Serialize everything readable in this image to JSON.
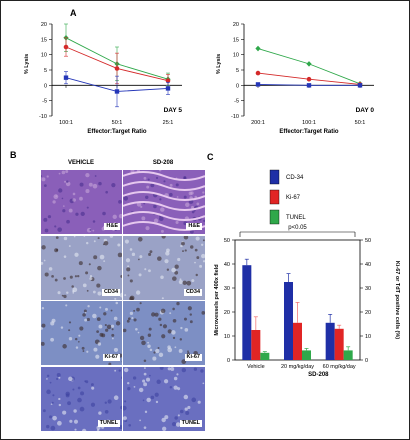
{
  "panels": {
    "A": {
      "label": "A"
    },
    "B": {
      "label": "B",
      "col_headers": [
        "VEHICLE",
        "SD-208"
      ],
      "rows": [
        {
          "label": "H&E",
          "color": "#8a5fb9"
        },
        {
          "label": "CD34",
          "color": "#9aa2c6"
        },
        {
          "label": "Ki-67",
          "color": "#7d8fc4"
        },
        {
          "label": "TUNEL",
          "color": "#6a6fc0"
        }
      ]
    },
    "C": {
      "label": "C"
    }
  },
  "chart_data": [
    {
      "id": "A-day5",
      "type": "line",
      "xlabel": "Effector:Target Ratio",
      "ylabel": "% Lysis",
      "annotation": "DAY 5",
      "categories": [
        "100:1",
        "50:1",
        "25:1"
      ],
      "ylim": [
        -10,
        20
      ],
      "yticks": [
        -10,
        -5,
        0,
        5,
        10,
        15,
        20
      ],
      "series": [
        {
          "color": "#2fa84a",
          "marker": "diamond",
          "values": [
            15.5,
            7.0,
            2.0
          ],
          "err": [
            4.5,
            5.5,
            2.0
          ]
        },
        {
          "color": "#d42a2a",
          "marker": "circle",
          "values": [
            12.5,
            5.5,
            1.5
          ],
          "err": [
            3.0,
            5.0,
            2.0
          ]
        },
        {
          "color": "#2436b8",
          "marker": "square",
          "values": [
            2.5,
            -2.0,
            -1.0
          ],
          "err": [
            2.0,
            5.0,
            2.0
          ]
        }
      ]
    },
    {
      "id": "A-day0",
      "type": "line",
      "xlabel": "Effector:Target Ratio",
      "ylabel": "% Lysis",
      "annotation": "DAY 0",
      "categories": [
        "200:1",
        "100:1",
        "50:1"
      ],
      "ylim": [
        -10,
        20
      ],
      "yticks": [
        -10,
        -5,
        0,
        5,
        10,
        15,
        20
      ],
      "series": [
        {
          "color": "#2fa84a",
          "marker": "diamond",
          "values": [
            12.0,
            7.0,
            0.5
          ],
          "err": [
            0,
            0,
            0
          ]
        },
        {
          "color": "#d42a2a",
          "marker": "circle",
          "values": [
            4.0,
            2.0,
            0.3
          ],
          "err": [
            0,
            0,
            0
          ]
        },
        {
          "color": "#2436b8",
          "marker": "square",
          "values": [
            0.3,
            0.0,
            0.0
          ],
          "err": [
            0,
            0,
            0
          ]
        }
      ]
    },
    {
      "id": "C",
      "type": "bar",
      "ylabel": "Microvessels per 400x field",
      "y2label": "Ki-67 or TdT positive cells (%)",
      "xlabel": "SD-208",
      "categories": [
        "Vehicle",
        "20 mg/kg/day",
        "60 mg/kg/day"
      ],
      "ylim": [
        0,
        50
      ],
      "yticks": [
        0,
        10,
        20,
        30,
        40,
        50
      ],
      "annotation": "p<0.05",
      "series": [
        {
          "name": "CD-34",
          "color": "#1f2fa6",
          "values": [
            39.5,
            32.5,
            15.5
          ],
          "err": [
            2.5,
            3.5,
            3.5
          ]
        },
        {
          "name": "Ki-67",
          "color": "#e12525",
          "values": [
            12.5,
            15.5,
            13.0
          ],
          "err": [
            5.5,
            8.5,
            1.5
          ]
        },
        {
          "name": "TUNEL",
          "color": "#2fa84a",
          "values": [
            3.0,
            4.0,
            4.0
          ],
          "err": [
            0.5,
            0.8,
            1.5
          ]
        }
      ]
    }
  ]
}
